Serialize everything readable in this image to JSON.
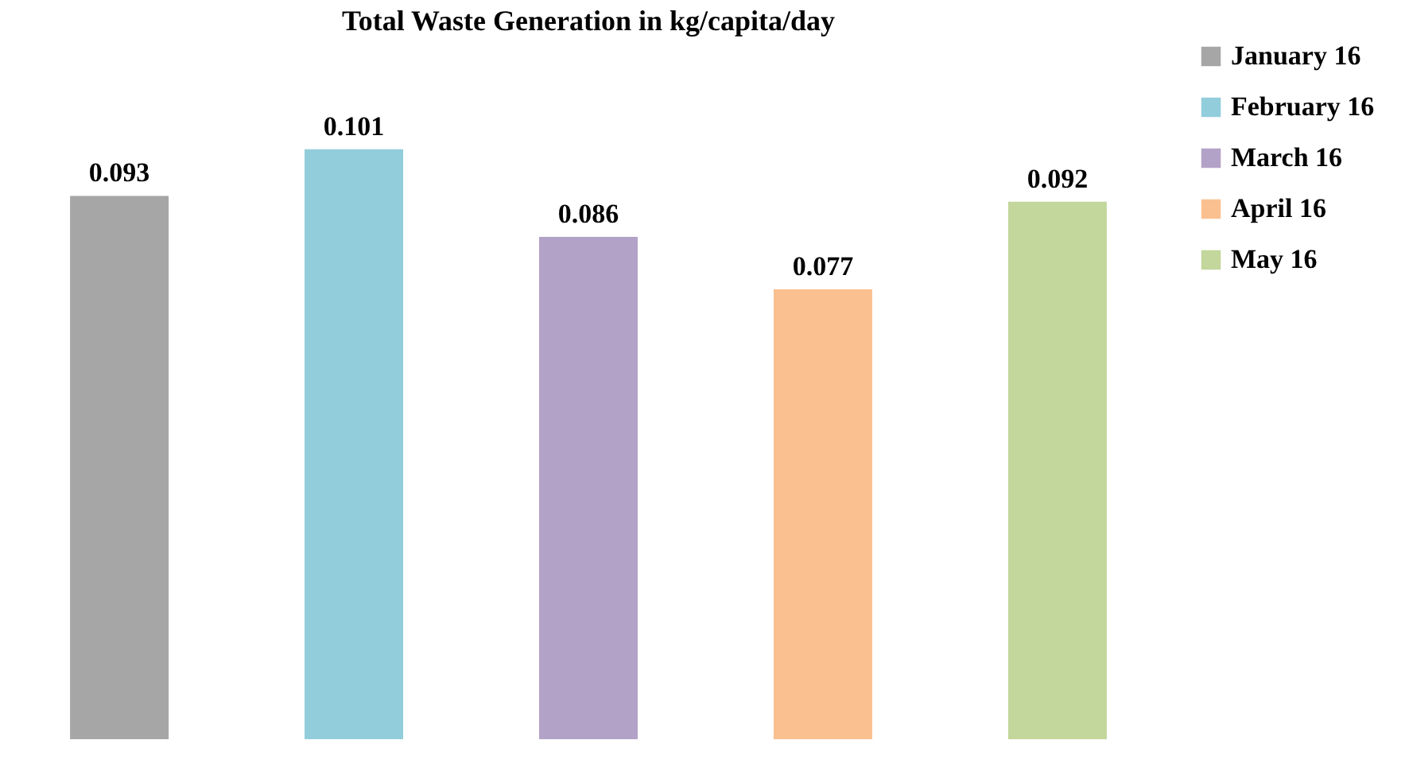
{
  "chart_data": {
    "type": "bar",
    "title": "Total Waste Generation in kg/capita/day",
    "categories": [
      null,
      null,
      null,
      null,
      null
    ],
    "series": [
      {
        "name": "January 16",
        "color": "#a6a6a6",
        "values": [
          0.093,
          null,
          null,
          null,
          null
        ]
      },
      {
        "name": "February 16",
        "color": "#92cddc",
        "values": [
          null,
          0.101,
          null,
          null,
          null
        ]
      },
      {
        "name": "March 16",
        "color": "#b3a2c7",
        "values": [
          null,
          null,
          0.086,
          null,
          null
        ]
      },
      {
        "name": "April 16",
        "color": "#fac090",
        "values": [
          null,
          null,
          null,
          0.077,
          null
        ]
      },
      {
        "name": "May 16",
        "color": "#c3d69b",
        "values": [
          null,
          null,
          null,
          null,
          0.092
        ]
      }
    ],
    "stacked": true,
    "data_labels": true,
    "legend": "right",
    "tick_labels": false
  }
}
